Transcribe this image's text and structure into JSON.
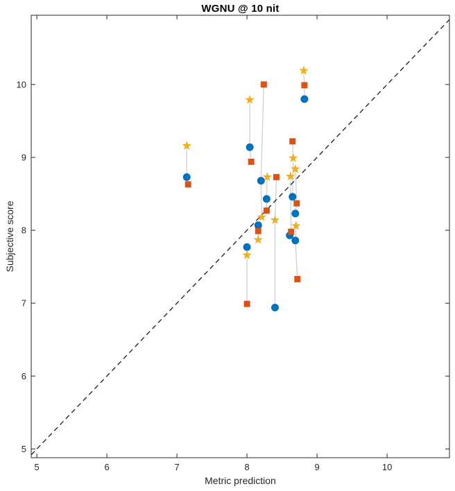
{
  "chart_data": {
    "type": "scatter",
    "title": "WGNU @ 10 nit",
    "xlabel": "Metric prediction",
    "ylabel": "Subjective score",
    "xlim": [
      4.92,
      10.89
    ],
    "ylim": [
      4.88,
      10.95
    ],
    "xticks": [
      5,
      6,
      7,
      8,
      9,
      10
    ],
    "yticks": [
      5,
      6,
      7,
      8,
      9,
      10
    ],
    "grid": false,
    "legend_position": "none",
    "axis_color": "#262626",
    "background_color": "#ffffff",
    "identity_line": {
      "style": "dashed",
      "color": "#1a1a1a",
      "from": [
        4.92,
        4.92
      ],
      "to": [
        10.89,
        10.89
      ]
    },
    "marker_colors": {
      "circle": "#0072BD",
      "square": "#D95319",
      "star": "#EDB120"
    },
    "connector_color": "#cccccc",
    "groups": [
      {
        "points": [
          {
            "marker": "star",
            "x": 7.14,
            "y": 9.16
          },
          {
            "marker": "circle",
            "x": 7.14,
            "y": 8.73
          },
          {
            "marker": "square",
            "x": 7.16,
            "y": 8.63
          }
        ]
      },
      {
        "points": [
          {
            "marker": "star",
            "x": 8.04,
            "y": 9.79
          },
          {
            "marker": "circle",
            "x": 8.04,
            "y": 9.14
          },
          {
            "marker": "square",
            "x": 8.06,
            "y": 8.94
          }
        ]
      },
      {
        "points": [
          {
            "marker": "circle",
            "x": 8.0,
            "y": 7.77
          },
          {
            "marker": "star",
            "x": 8.0,
            "y": 7.66
          },
          {
            "marker": "square",
            "x": 8.0,
            "y": 6.99
          }
        ]
      },
      {
        "points": [
          {
            "marker": "square",
            "x": 8.24,
            "y": 10.0
          },
          {
            "marker": "circle",
            "x": 8.2,
            "y": 8.68
          },
          {
            "marker": "star",
            "x": 8.21,
            "y": 8.18
          }
        ]
      },
      {
        "points": [
          {
            "marker": "star",
            "x": 8.29,
            "y": 8.73
          },
          {
            "marker": "circle",
            "x": 8.28,
            "y": 8.43
          },
          {
            "marker": "square",
            "x": 8.28,
            "y": 8.27
          }
        ]
      },
      {
        "points": [
          {
            "marker": "circle",
            "x": 8.16,
            "y": 8.07
          },
          {
            "marker": "square",
            "x": 8.16,
            "y": 7.99
          },
          {
            "marker": "star",
            "x": 8.16,
            "y": 7.87
          }
        ]
      },
      {
        "points": [
          {
            "marker": "square",
            "x": 8.42,
            "y": 8.73
          },
          {
            "marker": "star",
            "x": 8.4,
            "y": 8.14
          },
          {
            "marker": "circle",
            "x": 8.4,
            "y": 6.94
          }
        ]
      },
      {
        "points": [
          {
            "marker": "star",
            "x": 8.81,
            "y": 10.19
          },
          {
            "marker": "square",
            "x": 8.82,
            "y": 9.99
          },
          {
            "marker": "circle",
            "x": 8.82,
            "y": 9.8
          }
        ]
      },
      {
        "points": [
          {
            "marker": "square",
            "x": 8.65,
            "y": 9.22
          },
          {
            "marker": "star",
            "x": 8.66,
            "y": 8.99
          },
          {
            "marker": "circle",
            "x": 8.65,
            "y": 8.46
          }
        ]
      },
      {
        "points": [
          {
            "marker": "star",
            "x": 8.69,
            "y": 8.84
          },
          {
            "marker": "square",
            "x": 8.71,
            "y": 8.37
          },
          {
            "marker": "circle",
            "x": 8.69,
            "y": 8.23
          }
        ]
      },
      {
        "points": [
          {
            "marker": "star",
            "x": 8.62,
            "y": 8.74
          },
          {
            "marker": "square",
            "x": 8.63,
            "y": 7.98
          },
          {
            "marker": "circle",
            "x": 8.61,
            "y": 7.93
          }
        ]
      },
      {
        "points": [
          {
            "marker": "star",
            "x": 8.7,
            "y": 8.06
          },
          {
            "marker": "circle",
            "x": 8.69,
            "y": 7.86
          },
          {
            "marker": "square",
            "x": 8.72,
            "y": 7.33
          }
        ]
      }
    ]
  }
}
